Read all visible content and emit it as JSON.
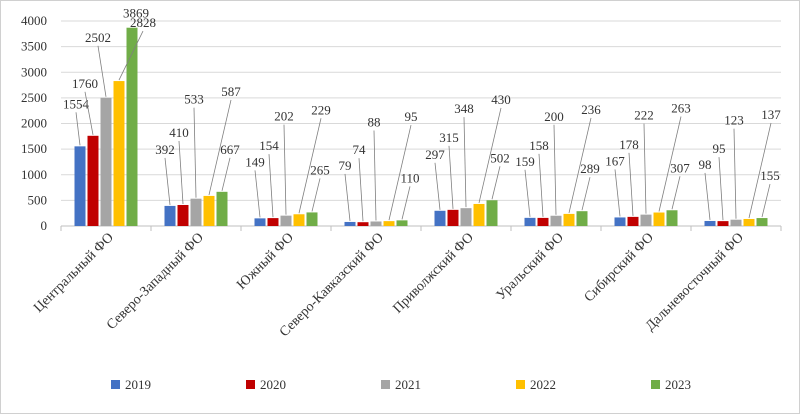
{
  "chart_data": {
    "type": "bar",
    "title": "",
    "xlabel": "",
    "ylabel": "",
    "ylim": [
      0,
      4000
    ],
    "yticks": [
      0,
      500,
      1000,
      1500,
      2000,
      2500,
      3000,
      3500,
      4000
    ],
    "grid": true,
    "legend_position": "bottom",
    "categories": [
      "Центральный ФО",
      "Северо-Западный ФО",
      "Южный ФО",
      "Северо-Кавказский ФО",
      "Приволжский ФО",
      "Уральский ФО",
      "Сибирский ФО",
      "Дальневосточный ФО"
    ],
    "series": [
      {
        "name": "2019",
        "color": "#4472C4",
        "values": [
          1554,
          392,
          149,
          79,
          297,
          159,
          167,
          98
        ]
      },
      {
        "name": "2020",
        "color": "#C00000",
        "values": [
          1760,
          410,
          154,
          74,
          315,
          158,
          178,
          95
        ]
      },
      {
        "name": "2021",
        "color": "#A5A5A5",
        "values": [
          2502,
          533,
          202,
          88,
          348,
          200,
          222,
          123
        ]
      },
      {
        "name": "2022",
        "color": "#FFC000",
        "values": [
          2828,
          587,
          229,
          95,
          430,
          236,
          263,
          137
        ]
      },
      {
        "name": "2023",
        "color": "#70AD47",
        "values": [
          3869,
          667,
          265,
          110,
          502,
          289,
          307,
          155
        ]
      }
    ]
  }
}
